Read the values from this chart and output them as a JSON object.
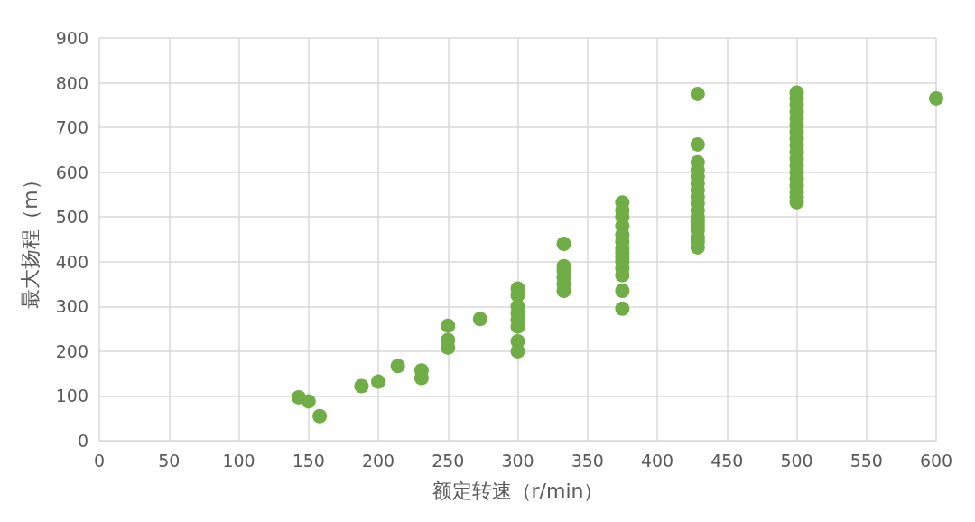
{
  "chart_data": {
    "type": "scatter",
    "xlabel": "额定转速（r/min）",
    "ylabel": "最大扬程（m）",
    "x": [
      143,
      150,
      158,
      188,
      200,
      214,
      231,
      231,
      250,
      250,
      250,
      273,
      300,
      300,
      300,
      300,
      300,
      300,
      300,
      300,
      333,
      333,
      333,
      333,
      333,
      333,
      375,
      375,
      375,
      375,
      375,
      375,
      375,
      375,
      375,
      375,
      375,
      375,
      375,
      375,
      429,
      429,
      429,
      429,
      429,
      429,
      429,
      429,
      429,
      429,
      429,
      429,
      429,
      429,
      429,
      429,
      429,
      500,
      500,
      500,
      500,
      500,
      500,
      500,
      500,
      500,
      500,
      500,
      500,
      500,
      500,
      500,
      500,
      500,
      500,
      600
    ],
    "values": [
      97,
      88,
      55,
      122,
      132,
      167,
      157,
      140,
      257,
      225,
      208,
      272,
      340,
      325,
      300,
      285,
      270,
      255,
      222,
      200,
      440,
      390,
      380,
      365,
      350,
      335,
      532,
      515,
      500,
      480,
      460,
      445,
      430,
      420,
      410,
      400,
      385,
      370,
      335,
      295,
      775,
      662,
      622,
      605,
      590,
      575,
      560,
      545,
      530,
      515,
      500,
      490,
      480,
      470,
      455,
      445,
      432,
      778,
      765,
      750,
      735,
      720,
      705,
      690,
      675,
      660,
      645,
      630,
      615,
      600,
      585,
      570,
      555,
      545,
      533,
      765
    ],
    "color": "#70ad47",
    "marker": "circle",
    "grid": true,
    "xlim": [
      0,
      600
    ],
    "xticks": [
      0,
      50,
      100,
      150,
      200,
      250,
      300,
      350,
      400,
      450,
      500,
      550,
      600
    ],
    "ylim": [
      0,
      900
    ],
    "yticks": [
      0,
      100,
      200,
      300,
      400,
      500,
      600,
      700,
      800,
      900
    ]
  }
}
